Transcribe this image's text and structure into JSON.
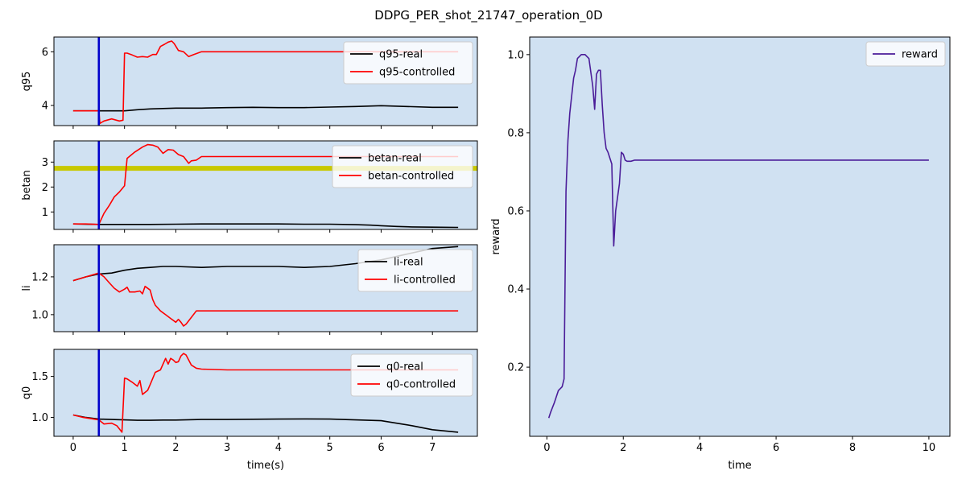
{
  "figure": {
    "title": "DDPG_PER_shot_21747_operation_0D",
    "background": "#ffffff",
    "axes_facecolor": "#d0e1f2"
  },
  "chart_data": [
    {
      "id": "q95",
      "type": "line",
      "xlabel": "",
      "ylabel": "q95",
      "xlim": [
        -0.375,
        7.875
      ],
      "ylim": [
        3.25,
        6.55
      ],
      "xticks": [
        0,
        1,
        2,
        3,
        4,
        5,
        6,
        7
      ],
      "xticklabels_visible": false,
      "yticks": [
        4,
        6
      ],
      "legend": "upper right",
      "vline": {
        "x": 0.5,
        "color": "#0000cc"
      },
      "series": [
        {
          "name": "q95-real",
          "color": "#000000",
          "x": [
            0,
            0.25,
            0.5,
            0.75,
            1.0,
            1.25,
            1.5,
            2.0,
            2.5,
            3.0,
            3.5,
            4.0,
            4.5,
            5.0,
            5.5,
            6.0,
            6.5,
            7.0,
            7.5
          ],
          "y": [
            3.8,
            3.8,
            3.8,
            3.8,
            3.8,
            3.84,
            3.87,
            3.9,
            3.9,
            3.92,
            3.93,
            3.92,
            3.92,
            3.94,
            3.96,
            3.99,
            3.96,
            3.93,
            3.93
          ]
        },
        {
          "name": "q95-controlled",
          "color": "#ff0000",
          "x": [
            0,
            0.25,
            0.5,
            0.52,
            0.6,
            0.75,
            0.9,
            0.97,
            1.0,
            1.05,
            1.15,
            1.25,
            1.35,
            1.45,
            1.55,
            1.62,
            1.7,
            1.78,
            1.85,
            1.92,
            1.97,
            2.05,
            2.15,
            2.25,
            2.35,
            2.5,
            3.0,
            3.5,
            4.0,
            4.5,
            5.0,
            5.5,
            6.0,
            6.5,
            7.0,
            7.5
          ],
          "y": [
            3.8,
            3.8,
            3.8,
            3.33,
            3.42,
            3.5,
            3.42,
            3.45,
            5.95,
            5.95,
            5.88,
            5.8,
            5.82,
            5.8,
            5.9,
            5.9,
            6.2,
            6.28,
            6.36,
            6.4,
            6.3,
            6.05,
            6.0,
            5.82,
            5.9,
            6.0,
            6.0,
            6.0,
            6.0,
            6.0,
            6.0,
            6.0,
            6.0,
            6.0,
            6.0,
            6.0
          ]
        }
      ]
    },
    {
      "id": "betan",
      "type": "line",
      "xlabel": "",
      "ylabel": "betan",
      "xlim": [
        -0.375,
        7.875
      ],
      "ylim": [
        0.3,
        3.85
      ],
      "xticks": [
        0,
        1,
        2,
        3,
        4,
        5,
        6,
        7
      ],
      "xticklabels_visible": false,
      "yticks": [
        1,
        2,
        3
      ],
      "legend": "upper right",
      "hline": {
        "y": 2.75,
        "color": "#c8c800"
      },
      "vline": {
        "x": 0.5,
        "color": "#0000cc"
      },
      "series": [
        {
          "name": "betan-real",
          "color": "#000000",
          "x": [
            0,
            0.5,
            1.0,
            1.5,
            2.0,
            2.5,
            3.0,
            3.5,
            4.0,
            4.5,
            5.0,
            5.5,
            5.8,
            6.0,
            6.3,
            6.6,
            7.0,
            7.5
          ],
          "y": [
            0.52,
            0.5,
            0.5,
            0.5,
            0.51,
            0.52,
            0.52,
            0.52,
            0.52,
            0.51,
            0.51,
            0.49,
            0.47,
            0.45,
            0.42,
            0.4,
            0.39,
            0.38
          ]
        },
        {
          "name": "betan-controlled",
          "color": "#ff0000",
          "x": [
            0,
            0.25,
            0.5,
            0.6,
            0.7,
            0.8,
            0.9,
            1.0,
            1.05,
            1.2,
            1.35,
            1.45,
            1.55,
            1.65,
            1.75,
            1.85,
            1.95,
            2.05,
            2.15,
            2.25,
            2.3,
            2.4,
            2.5,
            3.0,
            3.5,
            4.0,
            4.5,
            5.0,
            5.5,
            6.0,
            6.5,
            7.0,
            7.5
          ],
          "y": [
            0.52,
            0.52,
            0.5,
            0.95,
            1.25,
            1.6,
            1.8,
            2.05,
            3.15,
            3.4,
            3.6,
            3.7,
            3.68,
            3.6,
            3.35,
            3.5,
            3.48,
            3.3,
            3.22,
            2.95,
            3.05,
            3.08,
            3.22,
            3.22,
            3.22,
            3.22,
            3.22,
            3.22,
            3.22,
            3.22,
            3.22,
            3.22,
            3.22
          ]
        }
      ]
    },
    {
      "id": "li",
      "type": "line",
      "xlabel": "",
      "ylabel": "li",
      "xlim": [
        -0.375,
        7.875
      ],
      "ylim": [
        0.91,
        1.37
      ],
      "xticks": [
        0,
        1,
        2,
        3,
        4,
        5,
        6,
        7
      ],
      "xticklabels_visible": false,
      "yticks": [
        1.0,
        1.2
      ],
      "yticklabels": [
        "1.0",
        "1.2"
      ],
      "legend": "upper right",
      "vline": {
        "x": 0.5,
        "color": "#0000cc"
      },
      "series": [
        {
          "name": "li-real",
          "color": "#000000",
          "x": [
            0,
            0.25,
            0.5,
            0.75,
            1.0,
            1.25,
            1.5,
            1.75,
            2.0,
            2.5,
            3.0,
            3.5,
            4.0,
            4.5,
            5.0,
            5.5,
            6.0,
            6.5,
            7.0,
            7.5
          ],
          "y": [
            1.18,
            1.2,
            1.215,
            1.22,
            1.235,
            1.245,
            1.25,
            1.255,
            1.255,
            1.25,
            1.255,
            1.255,
            1.255,
            1.25,
            1.255,
            1.27,
            1.29,
            1.32,
            1.35,
            1.36
          ]
        },
        {
          "name": "li-controlled",
          "color": "#ff0000",
          "x": [
            0,
            0.25,
            0.5,
            0.6,
            0.7,
            0.8,
            0.9,
            1.0,
            1.05,
            1.1,
            1.2,
            1.3,
            1.35,
            1.4,
            1.5,
            1.55,
            1.6,
            1.7,
            1.8,
            1.9,
            2.0,
            2.05,
            2.1,
            2.15,
            2.2,
            2.3,
            2.4,
            2.5,
            3.0,
            3.5,
            4.0,
            4.5,
            5.0,
            5.5,
            6.0,
            6.5,
            7.0,
            7.5
          ],
          "y": [
            1.18,
            1.2,
            1.22,
            1.2,
            1.17,
            1.14,
            1.12,
            1.135,
            1.145,
            1.12,
            1.12,
            1.125,
            1.11,
            1.15,
            1.13,
            1.08,
            1.05,
            1.02,
            1.0,
            0.98,
            0.96,
            0.975,
            0.96,
            0.94,
            0.95,
            0.985,
            1.02,
            1.02,
            1.02,
            1.02,
            1.02,
            1.02,
            1.02,
            1.02,
            1.02,
            1.02,
            1.02,
            1.02
          ]
        }
      ]
    },
    {
      "id": "q0",
      "type": "line",
      "xlabel": "time(s)",
      "ylabel": "q0",
      "xlim": [
        -0.375,
        7.875
      ],
      "ylim": [
        0.77,
        1.83
      ],
      "xticks": [
        0,
        1,
        2,
        3,
        4,
        5,
        6,
        7
      ],
      "xticklabels_visible": true,
      "yticks": [
        1.0,
        1.5
      ],
      "yticklabels": [
        "1.0",
        "1.5"
      ],
      "legend": "upper right",
      "vline": {
        "x": 0.5,
        "color": "#0000cc"
      },
      "series": [
        {
          "name": "q0-real",
          "color": "#000000",
          "x": [
            0,
            0.25,
            0.5,
            0.75,
            1.0,
            1.25,
            1.5,
            1.75,
            2.0,
            2.5,
            3.0,
            3.5,
            4.0,
            4.5,
            5.0,
            5.5,
            6.0,
            6.3,
            6.6,
            7.0,
            7.5
          ],
          "y": [
            1.03,
            1.0,
            0.98,
            0.975,
            0.97,
            0.965,
            0.965,
            0.968,
            0.968,
            0.975,
            0.975,
            0.978,
            0.98,
            0.982,
            0.98,
            0.97,
            0.96,
            0.93,
            0.9,
            0.85,
            0.82
          ]
        },
        {
          "name": "q0-controlled",
          "color": "#ff0000",
          "x": [
            0,
            0.2,
            0.4,
            0.5,
            0.6,
            0.75,
            0.85,
            0.95,
            1.0,
            1.05,
            1.15,
            1.25,
            1.3,
            1.35,
            1.45,
            1.5,
            1.6,
            1.7,
            1.8,
            1.85,
            1.9,
            1.95,
            2.0,
            2.05,
            2.1,
            2.15,
            2.2,
            2.3,
            2.4,
            2.5,
            2.75,
            3.0,
            3.5,
            4.0,
            4.5,
            5.0,
            5.5,
            6.0,
            6.5,
            7.0,
            7.5
          ],
          "y": [
            1.03,
            1.0,
            0.98,
            0.97,
            0.92,
            0.93,
            0.9,
            0.82,
            1.48,
            1.47,
            1.43,
            1.38,
            1.45,
            1.28,
            1.33,
            1.4,
            1.55,
            1.58,
            1.72,
            1.65,
            1.72,
            1.7,
            1.67,
            1.68,
            1.75,
            1.78,
            1.76,
            1.64,
            1.6,
            1.59,
            1.585,
            1.58,
            1.58,
            1.58,
            1.58,
            1.58,
            1.58,
            1.58,
            1.58,
            1.58,
            1.58
          ]
        }
      ]
    },
    {
      "id": "reward",
      "type": "line",
      "xlabel": "time",
      "ylabel": "reward",
      "xlim": [
        -0.45,
        10.55
      ],
      "ylim": [
        0.023,
        1.045
      ],
      "xticks": [
        0,
        2,
        4,
        6,
        8,
        10
      ],
      "xticklabels_visible": true,
      "yticks": [
        0.2,
        0.4,
        0.6,
        0.8,
        1.0
      ],
      "yticklabels": [
        "0.2",
        "0.4",
        "0.6",
        "0.8",
        "1.0"
      ],
      "legend": "upper right",
      "series": [
        {
          "name": "reward",
          "color": "#4b1d99",
          "x": [
            0.05,
            0.1,
            0.2,
            0.3,
            0.4,
            0.45,
            0.5,
            0.55,
            0.6,
            0.7,
            0.75,
            0.8,
            0.9,
            0.95,
            1.0,
            1.05,
            1.1,
            1.2,
            1.25,
            1.3,
            1.35,
            1.4,
            1.45,
            1.5,
            1.55,
            1.6,
            1.7,
            1.75,
            1.8,
            1.9,
            1.95,
            2.0,
            2.05,
            2.1,
            2.2,
            2.3,
            2.5,
            3.0,
            4.0,
            5.0,
            6.0,
            7.0,
            8.0,
            9.0,
            10.0
          ],
          "y": [
            0.07,
            0.085,
            0.11,
            0.14,
            0.15,
            0.17,
            0.65,
            0.78,
            0.85,
            0.94,
            0.96,
            0.99,
            1.0,
            1.0,
            1.0,
            0.995,
            0.99,
            0.92,
            0.86,
            0.95,
            0.96,
            0.96,
            0.87,
            0.8,
            0.76,
            0.75,
            0.72,
            0.51,
            0.6,
            0.67,
            0.75,
            0.745,
            0.73,
            0.727,
            0.727,
            0.73,
            0.73,
            0.73,
            0.73,
            0.73,
            0.73,
            0.73,
            0.73,
            0.73,
            0.73
          ]
        }
      ]
    }
  ]
}
